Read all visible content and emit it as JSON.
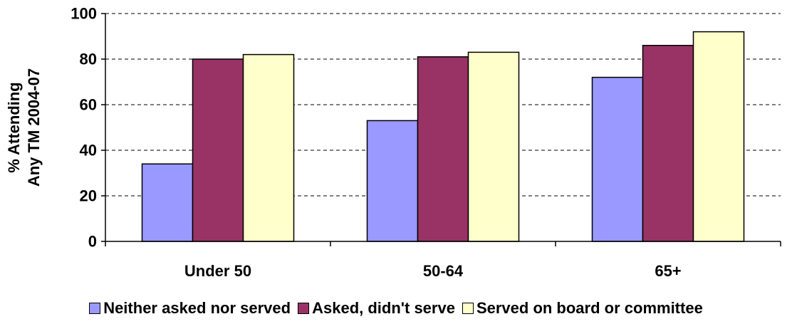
{
  "chart_data": {
    "type": "bar",
    "title": "",
    "xlabel": "",
    "ylabel": "% Attending\nAny TM 2004-07",
    "ylabel_lines": [
      "% Attending",
      "Any TM 2004-07"
    ],
    "categories": [
      "Under 50",
      "50-64",
      "65+"
    ],
    "ylim": [
      0,
      100
    ],
    "yticks": [
      0,
      20,
      40,
      60,
      80,
      100
    ],
    "grid": true,
    "legend_position": "bottom",
    "series": [
      {
        "name": "Neither asked nor served",
        "color": "#9999ff",
        "values": [
          34,
          53,
          72
        ]
      },
      {
        "name": "Asked, didn't serve",
        "color": "#993366",
        "values": [
          80,
          81,
          86
        ]
      },
      {
        "name": "Served on board or committee",
        "color": "#ffffcc",
        "values": [
          82,
          83,
          92
        ]
      }
    ]
  }
}
